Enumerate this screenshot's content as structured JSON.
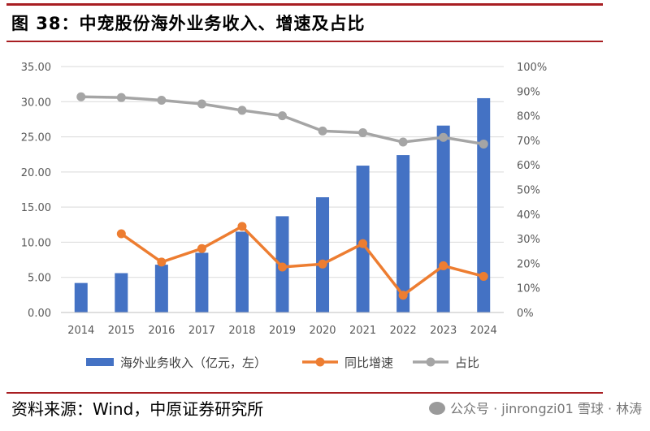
{
  "title": "图 38：中宠股份海外业务收入、增速及占比",
  "source": "资料来源：Wind，中原证券研究所",
  "watermark": "公众号 · jinrongzi01 雪球 · 林涛",
  "colors": {
    "bar": "#4472c4",
    "growth": "#ed7d31",
    "share": "#a5a5a5",
    "accent": "#a81e22"
  },
  "chart_data": {
    "type": "bar",
    "categories": [
      "2014",
      "2015",
      "2016",
      "2017",
      "2018",
      "2019",
      "2020",
      "2021",
      "2022",
      "2023",
      "2024"
    ],
    "series": [
      {
        "name": "海外业务收入（亿元，左）",
        "type": "bar",
        "axis": "left",
        "values": [
          4.2,
          5.6,
          6.8,
          8.5,
          11.5,
          13.7,
          16.4,
          20.9,
          22.4,
          26.6,
          30.5
        ]
      },
      {
        "name": "同比增速",
        "type": "line",
        "axis": "right",
        "values": [
          null,
          0.32,
          0.205,
          0.26,
          0.35,
          0.185,
          0.197,
          0.28,
          0.07,
          0.19,
          0.147
        ]
      },
      {
        "name": "占比",
        "type": "line",
        "axis": "right",
        "values": [
          0.877,
          0.874,
          0.863,
          0.848,
          0.822,
          0.8,
          0.738,
          0.731,
          0.693,
          0.712,
          0.685
        ]
      }
    ],
    "y_left": {
      "min": 0,
      "max": 35,
      "ticks": [
        "0.00",
        "5.00",
        "10.00",
        "15.00",
        "20.00",
        "25.00",
        "30.00",
        "35.00"
      ]
    },
    "y_right": {
      "min": 0,
      "max": 1,
      "ticks": [
        "0%",
        "10%",
        "20%",
        "30%",
        "40%",
        "50%",
        "60%",
        "70%",
        "80%",
        "90%",
        "100%"
      ]
    },
    "legend": [
      "海外业务收入（亿元，左）",
      "同比增速",
      "占比"
    ],
    "legend_position": "bottom"
  }
}
